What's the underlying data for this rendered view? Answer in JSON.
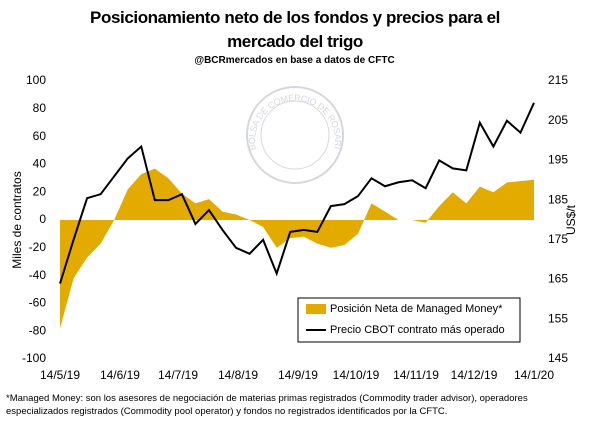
{
  "chart_data": {
    "type": "area-line",
    "title": "Posicionamiento neto de los fondos y precios para el mercado del trigo",
    "subtitle": "@BCRmercados en base a datos de CFTC",
    "watermark": "BOLSA DE COMERCIO DE ROSARIO",
    "ylabel": "Miles de contratos",
    "y2label": "US$/t",
    "footnote": "*Managed Money: son los asesores de negociación de materias primas registrados (Commodity trader advisor), operadores especializados registrados (Commodity pool operator) y fondos no registrados identificados por la CFTC.",
    "x": [
      "14/5/19",
      "21/5/19",
      "28/5/19",
      "4/6/19",
      "11/6/19",
      "18/6/19",
      "25/6/19",
      "2/7/19",
      "9/7/19",
      "16/7/19",
      "23/7/19",
      "30/7/19",
      "6/8/19",
      "13/8/19",
      "20/8/19",
      "27/8/19",
      "3/9/19",
      "10/9/19",
      "17/9/19",
      "24/9/19",
      "1/10/19",
      "8/10/19",
      "15/10/19",
      "22/10/19",
      "29/10/19",
      "5/11/19",
      "12/11/19",
      "19/11/19",
      "26/11/19",
      "3/12/19",
      "10/12/19",
      "17/12/19",
      "24/12/19",
      "31/12/19",
      "7/1/20",
      "14/1/20"
    ],
    "xticks": [
      "14/5/19",
      "14/6/19",
      "14/7/19",
      "14/8/19",
      "14/9/19",
      "14/10/19",
      "14/11/19",
      "14/12/19",
      "14/1/20"
    ],
    "series": [
      {
        "name": "Posición Neta de Managed Money*",
        "color": "#e3aa00",
        "kind": "area",
        "values": [
          -78,
          -42,
          -27,
          -17,
          0,
          22,
          33,
          37,
          30,
          19,
          12,
          15,
          6,
          4,
          0,
          -5,
          -20,
          -13,
          -12,
          -17,
          -20,
          -18,
          -10,
          12,
          6,
          0,
          0,
          -2,
          10,
          20,
          12,
          24,
          20,
          27,
          28,
          29
        ]
      },
      {
        "name": "Precio CBOT contrato más operado",
        "color": "#000000",
        "kind": "line",
        "axis": "y2",
        "values": [
          164,
          175,
          185.5,
          186.5,
          191,
          195.5,
          198.5,
          185,
          185,
          186.5,
          179,
          182.5,
          177.5,
          173,
          171.5,
          175,
          166.5,
          177,
          177.5,
          177,
          183.5,
          184,
          186,
          190.5,
          188.5,
          189.5,
          190,
          188,
          195,
          193,
          192.5,
          204.5,
          198.5,
          205,
          202,
          209.5
        ]
      }
    ],
    "ylim": [
      -100,
      100
    ],
    "yticks": [
      -100,
      -80,
      -60,
      -40,
      -20,
      0,
      20,
      40,
      60,
      80,
      100
    ],
    "y2lim": [
      145,
      215
    ],
    "y2ticks": [
      145,
      155,
      165,
      175,
      185,
      195,
      205,
      215
    ],
    "legend": "lower right"
  }
}
